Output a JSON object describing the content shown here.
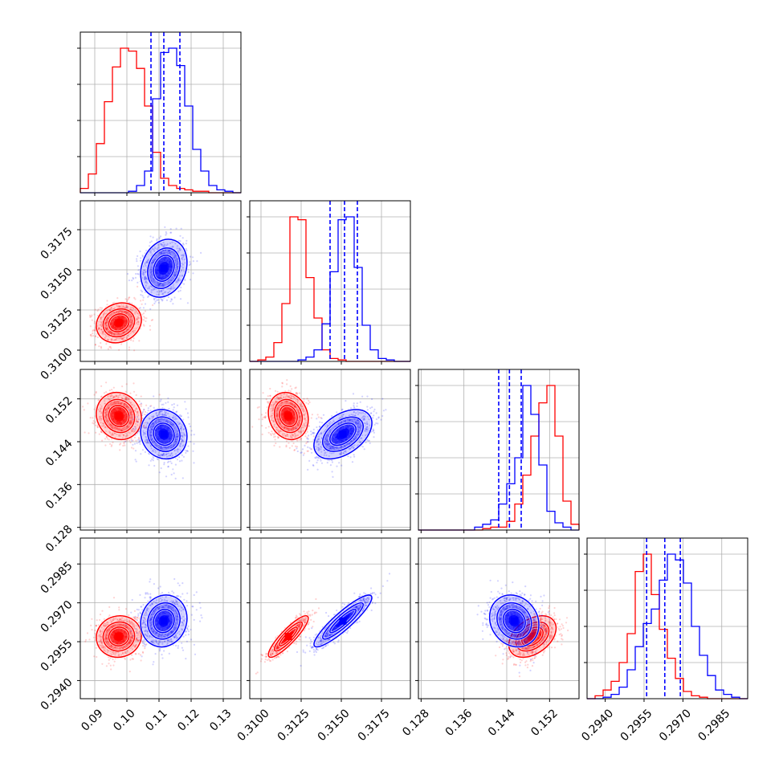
{
  "chart_data": {
    "type": "corner",
    "parameters": [
      {
        "ticks": [
          "0.09",
          "0.10",
          "0.11",
          "0.12",
          "0.13"
        ],
        "range": [
          0.0855,
          0.1355
        ]
      },
      {
        "ticks": [
          "0.3100",
          "0.3125",
          "0.3150",
          "0.3175"
        ],
        "range": [
          0.3093,
          0.3193
        ]
      },
      {
        "ticks": [
          "0.128",
          "0.136",
          "0.144",
          "0.152"
        ],
        "range": [
          0.1275,
          0.1575
        ]
      },
      {
        "ticks": [
          "0.2940",
          "0.2955",
          "0.2970",
          "0.2985"
        ],
        "range": [
          0.2933,
          0.2995
        ]
      }
    ],
    "series": [
      {
        "color": "#ff0000",
        "means": [
          0.0975,
          0.3117,
          0.1488,
          0.2957
        ],
        "stds": [
          0.0035,
          0.00062,
          0.0022,
          0.0004
        ],
        "correlations": {
          "0-1": 0.15,
          "0-2": -0.1,
          "0-3": 0.05,
          "1-2": -0.15,
          "1-3": 0.88,
          "2-3": 0.4
        },
        "histograms": [
          [
            0.03,
            0.13,
            0.34,
            0.63,
            0.87,
            1.0,
            0.98,
            0.86,
            0.6,
            0.28,
            0.1,
            0.05,
            0.03,
            0.02,
            0.01,
            0.01,
            0,
            0,
            0,
            0
          ],
          [
            0,
            0.01,
            0.03,
            0.13,
            0.4,
            1.0,
            0.98,
            0.58,
            0.3,
            0.08,
            0.02,
            0.01,
            0,
            0,
            0,
            0,
            0,
            0,
            0,
            0
          ],
          [
            0,
            0,
            0,
            0,
            0,
            0,
            0,
            0,
            0.01,
            0.02,
            0.02,
            0.06,
            0.18,
            0.38,
            0.65,
            0.88,
            1.0,
            0.65,
            0.2,
            0.04
          ],
          [
            0,
            0.02,
            0.06,
            0.12,
            0.25,
            0.45,
            0.88,
            1.0,
            0.72,
            0.48,
            0.28,
            0.14,
            0.05,
            0.02,
            0.01,
            0,
            0,
            0,
            0,
            0
          ]
        ]
      },
      {
        "color": "#0000ff",
        "means": [
          0.1115,
          0.3151,
          0.1454,
          0.2963
        ],
        "stds": [
          0.0036,
          0.0009,
          0.0023,
          0.0005
        ],
        "correlations": {
          "0-1": 0.2,
          "0-2": -0.1,
          "0-3": 0.1,
          "1-2": 0.45,
          "1-3": 0.9,
          "2-3": -0.15
        },
        "histograms": [
          [
            0,
            0,
            0,
            0,
            0,
            0,
            0.01,
            0.05,
            0.15,
            0.65,
            0.97,
            1.0,
            0.88,
            0.6,
            0.3,
            0.15,
            0.05,
            0.02,
            0.01,
            0
          ],
          [
            0,
            0,
            0,
            0,
            0,
            0,
            0.01,
            0.03,
            0.08,
            0.26,
            0.62,
            0.98,
            1.0,
            0.65,
            0.25,
            0.08,
            0.02,
            0.01,
            0,
            0
          ],
          [
            0,
            0,
            0,
            0,
            0,
            0,
            0,
            0.02,
            0.04,
            0.07,
            0.18,
            0.32,
            0.5,
            1.0,
            0.8,
            0.45,
            0.13,
            0.05,
            0.02,
            0
          ],
          [
            0,
            0,
            0.01,
            0.03,
            0.08,
            0.2,
            0.36,
            0.52,
            0.62,
            0.82,
            1.0,
            0.96,
            0.8,
            0.5,
            0.3,
            0.16,
            0.06,
            0.03,
            0.01,
            0
          ]
        ]
      }
    ],
    "quantile_lines": [
      [
        0.1075,
        0.1115,
        0.1165
      ],
      [
        0.3143,
        0.3152,
        0.316
      ],
      [
        0.1425,
        0.1445,
        0.1467
      ],
      [
        0.2956,
        0.2963,
        0.2969
      ]
    ],
    "quantile_color": "#0000ff",
    "grid": true,
    "legend": "none"
  }
}
